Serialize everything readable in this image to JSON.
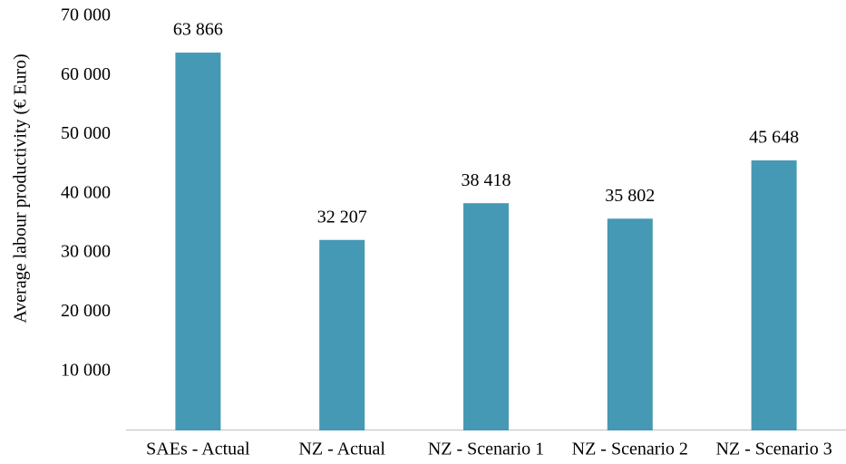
{
  "chart_data": {
    "type": "bar",
    "y_label": "Average labour productivity (€ Euro)",
    "categories": [
      "SAEs - Actual",
      "NZ - Actual",
      "NZ - Scenario 1",
      "NZ - Scenario 2",
      "NZ - Scenario 3"
    ],
    "values": [
      63866,
      32207,
      38418,
      35802,
      45648
    ],
    "value_labels": [
      "63 866",
      "32 207",
      "38 418",
      "35 802",
      "45 648"
    ],
    "color": "#4599b4",
    "ylim": [
      0,
      70000
    ],
    "yticks": [
      {
        "value": 10000,
        "label": "10 000"
      },
      {
        "value": 20000,
        "label": "20 000"
      },
      {
        "value": 30000,
        "label": "30 000"
      },
      {
        "value": 40000,
        "label": "40 000"
      },
      {
        "value": 50000,
        "label": "50 000"
      },
      {
        "value": 60000,
        "label": "60 000"
      },
      {
        "value": 70000,
        "label": "70 000"
      }
    ],
    "grid": false
  }
}
